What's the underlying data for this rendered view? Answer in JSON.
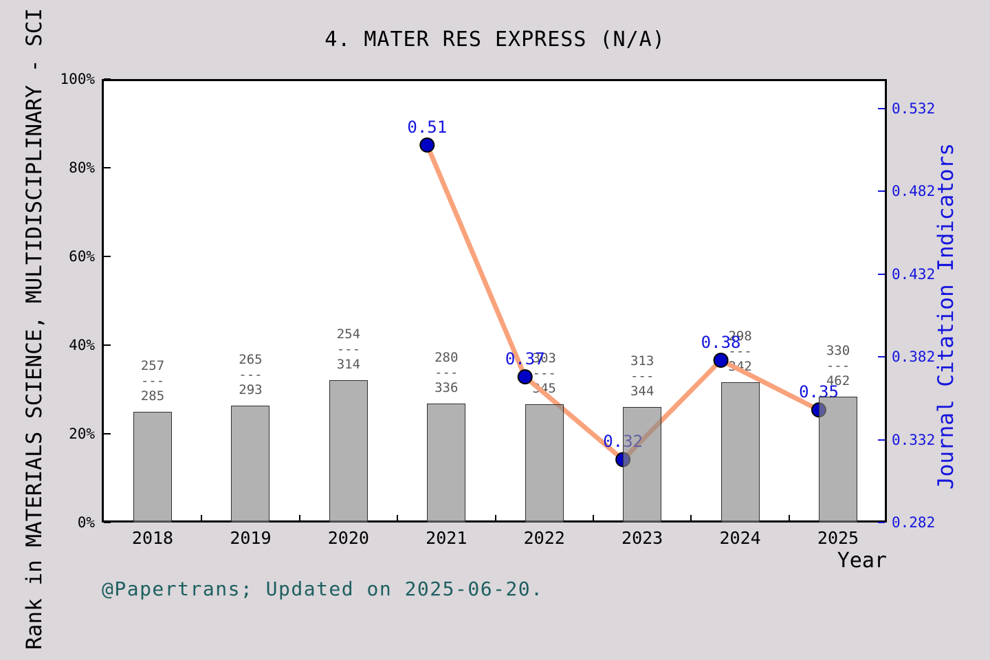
{
  "title": "4. MATER RES EXPRESS (N/A)",
  "footer_note": "@Papertrans; Updated on 2025-06-20.",
  "axes": {
    "left": {
      "label": "Rank in MATERIALS SCIENCE, MULTIDISCIPLINARY - SCI",
      "ticks": [
        "100%",
        "80%",
        "60%",
        "40%",
        "20%",
        "0%"
      ]
    },
    "right": {
      "label": "Journal Citation Indicators",
      "ticks": [
        "0.532",
        "0.482",
        "0.432",
        "0.382",
        "0.332",
        "0.282"
      ]
    },
    "x": {
      "label": "Year",
      "ticks": [
        "2018",
        "2019",
        "2020",
        "2021",
        "2022",
        "2023",
        "2024",
        "2025"
      ]
    }
  },
  "chart_data": {
    "type": "bar+line",
    "title": "4. MATER RES EXPRESS (N/A)",
    "categories": [
      "2018",
      "2019",
      "2020",
      "2021",
      "2022",
      "2023",
      "2024",
      "2025"
    ],
    "xlabel": "Year",
    "left_axis_label": "Rank in MATERIALS SCIENCE, MULTIDISCIPLINARY - SCI",
    "right_axis_label": "Journal Citation Indicators",
    "left_ylim": [
      0,
      100
    ],
    "right_ylim": [
      0.282,
      0.532
    ],
    "grid": false,
    "legend": "none",
    "series": [
      {
        "name": "rank-percentile-bars",
        "type": "bar",
        "axis": "left",
        "unit": "%",
        "values": [
          25.0,
          26.4,
          32.1,
          26.8,
          26.7,
          26.0,
          31.6,
          28.4
        ],
        "rank_labels": [
          {
            "rank": "257",
            "divider": "---",
            "total": "285"
          },
          {
            "rank": "265",
            "divider": "---",
            "total": "293"
          },
          {
            "rank": "254",
            "divider": "---",
            "total": "314"
          },
          {
            "rank": "280",
            "divider": "---",
            "total": "336"
          },
          {
            "rank": "303",
            "divider": "---",
            "total": "345"
          },
          {
            "rank": "313",
            "divider": "---",
            "total": "344"
          },
          {
            "rank": "298",
            "divider": "---",
            "total": "342"
          },
          {
            "rank": "330",
            "divider": "---",
            "total": "462"
          }
        ]
      },
      {
        "name": "journal-citation-indicators",
        "type": "line",
        "axis": "right",
        "values": [
          null,
          null,
          null,
          0.51,
          0.37,
          0.32,
          0.38,
          0.35
        ],
        "point_labels": [
          null,
          null,
          null,
          "0.51",
          "0.37",
          "0.32",
          "0.38",
          "0.35"
        ]
      }
    ]
  },
  "colors": {
    "background": "#dbd7db",
    "plot_background": "#ffffff",
    "bar_fill": "rgba(138,138,138,0.66)",
    "bar_edge": "#2e2e2e",
    "line": "#f9a37c",
    "marker_fill": "#0000c4",
    "marker_edge": "#000000",
    "blue_text": "#1414dd",
    "fraction_text": "#575757",
    "footer_text": "#1e5f5f",
    "axis": "#000000"
  }
}
